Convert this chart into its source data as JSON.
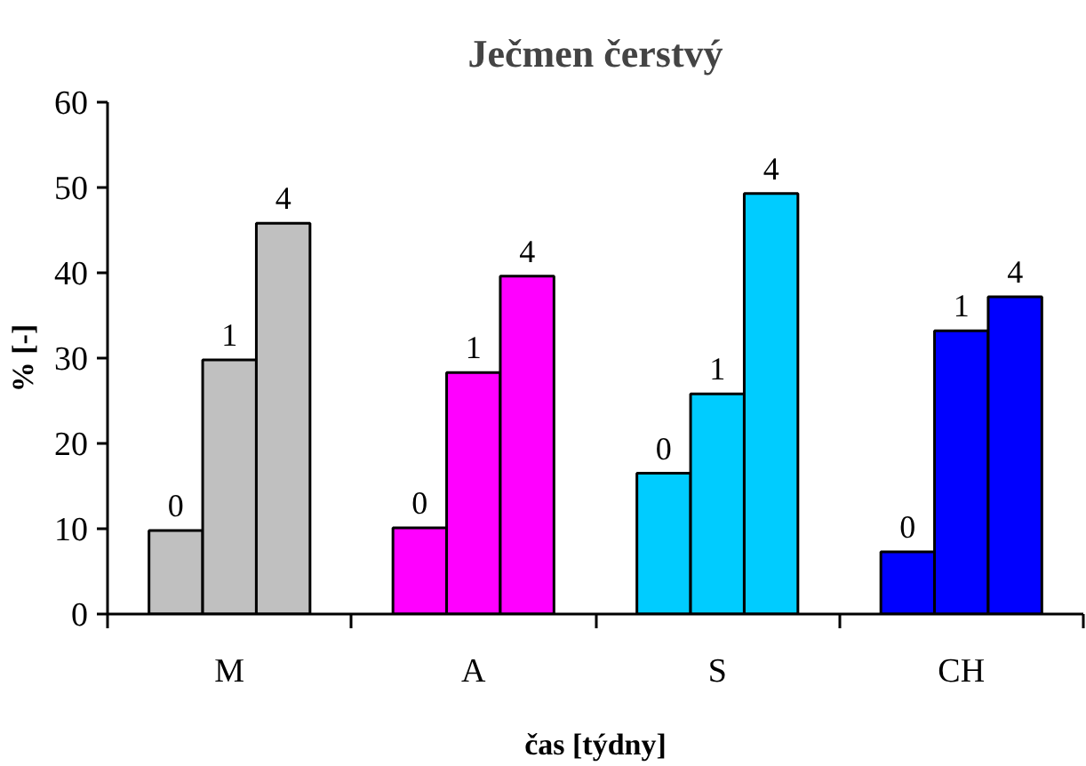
{
  "chart_data": {
    "type": "bar",
    "title": "Ječmen čerstvý",
    "xlabel": "čas [týdny]",
    "ylabel": "% [-]",
    "categories": [
      "M",
      "A",
      "S",
      "CH"
    ],
    "series": [
      {
        "name": "0",
        "colors": [
          "#c0c0c0",
          "#ff00ff",
          "#00ccff",
          "#0000ff"
        ],
        "values": [
          9.8,
          10.1,
          16.5,
          7.3
        ]
      },
      {
        "name": "1",
        "colors": [
          "#c0c0c0",
          "#ff00ff",
          "#00ccff",
          "#0000ff"
        ],
        "values": [
          29.8,
          28.3,
          25.8,
          33.2
        ]
      },
      {
        "name": "4",
        "colors": [
          "#c0c0c0",
          "#ff00ff",
          "#00ccff",
          "#0000ff"
        ],
        "values": [
          45.8,
          39.6,
          49.3,
          37.2
        ]
      }
    ],
    "ylim": [
      0,
      60
    ],
    "yticks": [
      0,
      10,
      20,
      30,
      40,
      50,
      60
    ],
    "grid": false
  }
}
